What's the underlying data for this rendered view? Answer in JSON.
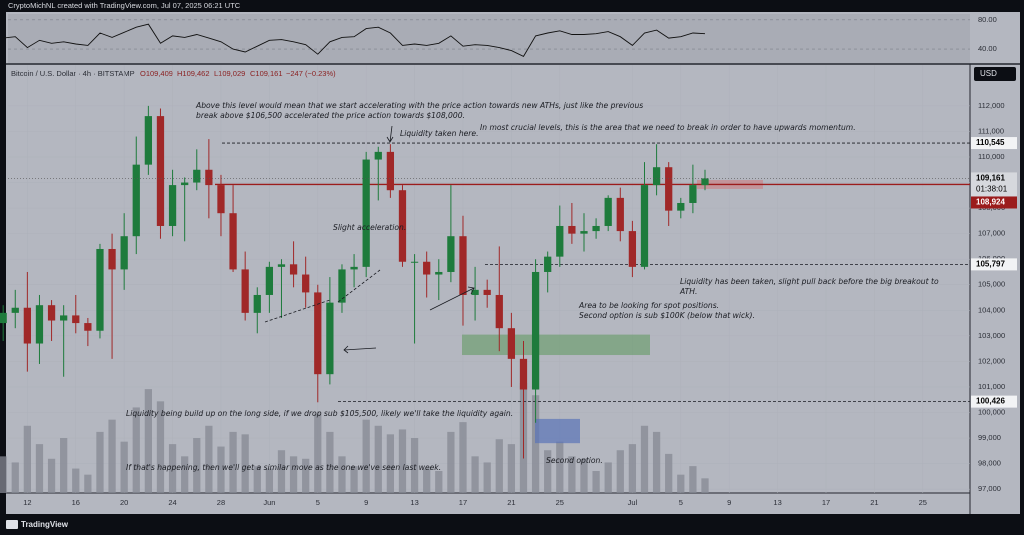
{
  "header": "CryptoMichNL created with TradingView.com, Jul 07, 2025 06:21 UTC",
  "legend": {
    "symbol": "Bitcoin / U.S. Dollar · 4h · BITSTAMP",
    "open": "O109,409",
    "high": "H109,462",
    "low": "L109,029",
    "close": "C109,161",
    "change": "−247 (−0.23%)"
  },
  "footer": "TradingView",
  "chart_data": {
    "type": "candlestick",
    "currency": "USD",
    "up_color": "#1e7b3c",
    "down_color": "#a02828",
    "xlim": [
      0.4,
      79.9
    ],
    "xticks": [
      {
        "value": 2,
        "label": "12"
      },
      {
        "value": 6,
        "label": "16"
      },
      {
        "value": 10,
        "label": "20"
      },
      {
        "value": 14,
        "label": "24"
      },
      {
        "value": 18,
        "label": "28"
      },
      {
        "value": 22,
        "label": "Jun"
      },
      {
        "value": 26,
        "label": "5"
      },
      {
        "value": 30,
        "label": "9"
      },
      {
        "value": 34,
        "label": "13"
      },
      {
        "value": 38,
        "label": "17"
      },
      {
        "value": 42,
        "label": "21"
      },
      {
        "value": 46,
        "label": "25"
      },
      {
        "value": 52,
        "label": "Jul"
      },
      {
        "value": 56,
        "label": "5"
      },
      {
        "value": 60,
        "label": "9"
      },
      {
        "value": 64,
        "label": "13"
      },
      {
        "value": 68,
        "label": "17"
      },
      {
        "value": 72,
        "label": "21"
      },
      {
        "value": 76,
        "label": "25"
      }
    ],
    "ylim": [
      96850,
      113600
    ],
    "yticks": [
      {
        "value": 97000,
        "label": "97,000"
      },
      {
        "value": 98000,
        "label": "98,000"
      },
      {
        "value": 99000,
        "label": "99,000"
      },
      {
        "value": 100000,
        "label": "100,000"
      },
      {
        "value": 101000,
        "label": "101,000"
      },
      {
        "value": 102000,
        "label": "102,000"
      },
      {
        "value": 103000,
        "label": "103,000"
      },
      {
        "value": 104000,
        "label": "104,000"
      },
      {
        "value": 105000,
        "label": "105,000"
      },
      {
        "value": 106000,
        "label": "106,000"
      },
      {
        "value": 107000,
        "label": "107,000"
      },
      {
        "value": 108000,
        "label": "108,000"
      },
      {
        "value": 109000,
        "label": "109,000"
      },
      {
        "value": 110000,
        "label": "110,000"
      },
      {
        "value": 111000,
        "label": "111,000"
      },
      {
        "value": 112000,
        "label": "112,000"
      }
    ],
    "ohlc": [
      [
        103500,
        104200,
        102800,
        103900
      ],
      [
        103900,
        104800,
        103300,
        104100
      ],
      [
        104100,
        105500,
        101600,
        102700
      ],
      [
        102700,
        104600,
        101900,
        104200
      ],
      [
        104200,
        104400,
        102800,
        103600
      ],
      [
        103600,
        104200,
        101400,
        103800
      ],
      [
        103800,
        104600,
        103100,
        103500
      ],
      [
        103500,
        103700,
        102600,
        103200
      ],
      [
        103200,
        106600,
        102900,
        106400
      ],
      [
        106400,
        107000,
        102100,
        105600
      ],
      [
        105600,
        107800,
        104800,
        106900
      ],
      [
        106900,
        110800,
        106200,
        109700
      ],
      [
        109700,
        112000,
        109300,
        111600
      ],
      [
        111600,
        111900,
        106800,
        107300
      ],
      [
        107300,
        109500,
        106900,
        108900
      ],
      [
        108900,
        109200,
        106700,
        109000
      ],
      [
        109000,
        110300,
        108700,
        109500
      ],
      [
        109500,
        110700,
        107600,
        108900
      ],
      [
        108900,
        109300,
        106900,
        107800
      ],
      [
        107800,
        108900,
        105500,
        105600
      ],
      [
        105600,
        106300,
        103600,
        103900
      ],
      [
        103900,
        104900,
        103100,
        104600
      ],
      [
        104600,
        105900,
        103900,
        105700
      ],
      [
        105700,
        106000,
        103700,
        105800
      ],
      [
        105800,
        106700,
        104900,
        105400
      ],
      [
        105400,
        106100,
        104100,
        104700
      ],
      [
        104700,
        105000,
        100400,
        101500
      ],
      [
        101500,
        105300,
        101100,
        104300
      ],
      [
        104300,
        105800,
        103900,
        105600
      ],
      [
        105600,
        106200,
        104900,
        105700
      ],
      [
        105700,
        110200,
        105300,
        109900
      ],
      [
        109900,
        110400,
        108300,
        110200
      ],
      [
        110200,
        110500,
        108400,
        108700
      ],
      [
        108700,
        108900,
        105700,
        105900
      ],
      [
        105900,
        106200,
        102700,
        105900
      ],
      [
        105900,
        106300,
        104500,
        105400
      ],
      [
        105400,
        106000,
        104400,
        105500
      ],
      [
        105500,
        108900,
        105100,
        106900
      ],
      [
        106900,
        107700,
        103400,
        104600
      ],
      [
        104600,
        105700,
        103600,
        104800
      ],
      [
        104800,
        105200,
        104100,
        104600
      ],
      [
        104600,
        106500,
        102400,
        103300
      ],
      [
        103300,
        103900,
        101000,
        102100
      ],
      [
        102100,
        102800,
        98200,
        100900
      ],
      [
        100900,
        106000,
        99600,
        105500
      ],
      [
        105500,
        106300,
        104700,
        106100
      ],
      [
        106100,
        108100,
        105700,
        107300
      ],
      [
        107300,
        108200,
        106600,
        107000
      ],
      [
        107000,
        107800,
        106300,
        107100
      ],
      [
        107100,
        107600,
        106800,
        107300
      ],
      [
        107300,
        108500,
        107100,
        108400
      ],
      [
        108400,
        108800,
        106700,
        107100
      ],
      [
        107100,
        107500,
        105300,
        105700
      ],
      [
        105700,
        109800,
        105600,
        108900
      ],
      [
        108900,
        110500,
        108500,
        109600
      ],
      [
        109600,
        109800,
        107300,
        107900
      ],
      [
        107900,
        108400,
        107600,
        108200
      ],
      [
        108200,
        109700,
        107800,
        108900
      ],
      [
        108900,
        109500,
        108700,
        109161
      ]
    ],
    "volume": [
      30,
      25,
      55,
      40,
      28,
      45,
      20,
      15,
      50,
      60,
      42,
      70,
      85,
      75,
      40,
      30,
      45,
      55,
      38,
      50,
      48,
      22,
      20,
      35,
      30,
      28,
      65,
      50,
      30,
      22,
      60,
      55,
      48,
      52,
      45,
      20,
      18,
      50,
      58,
      30,
      25,
      44,
      40,
      90,
      80,
      35,
      42,
      30,
      28,
      18,
      25,
      35,
      40,
      55,
      50,
      32,
      15,
      22,
      12
    ],
    "volume_color": "#858893",
    "rsi": [
      55,
      57,
      42,
      52,
      48,
      50,
      47,
      45,
      62,
      56,
      63,
      70,
      74,
      48,
      58,
      56,
      60,
      55,
      50,
      40,
      36,
      44,
      52,
      53,
      50,
      46,
      33,
      50,
      56,
      57,
      68,
      70,
      62,
      45,
      47,
      45,
      48,
      58,
      44,
      46,
      45,
      42,
      38,
      30,
      58,
      62,
      65,
      60,
      60,
      61,
      64,
      57,
      45,
      62,
      66,
      55,
      57,
      62,
      61
    ],
    "rsi_color": "#111111",
    "rsi_ylim": [
      21,
      88
    ],
    "rsi_yticks": [
      {
        "value": 40,
        "label": "40.00"
      },
      {
        "value": 80,
        "label": "80.00"
      }
    ],
    "levels": [
      {
        "value": 110545,
        "label": "110,545"
      },
      {
        "value": 105797,
        "label": "105,797"
      },
      {
        "value": 100426,
        "label": "100,426"
      }
    ],
    "resistance": {
      "value": 108924,
      "label": "108,924",
      "color": "#9b1c1c"
    },
    "last_price": {
      "value": 109161,
      "label": "109,161"
    },
    "countdown": "01:38:01",
    "zones": [
      {
        "low": 102250,
        "high": 103050,
        "color": "#6f9e72"
      },
      {
        "low": 98800,
        "high": 99750,
        "color": "#5a74b8"
      },
      {
        "low": 108750,
        "high": 109100,
        "color": "#c9848a"
      }
    ],
    "annotations": [
      [
        "Above this level would mean that we start accelerating with the price action towards new ATHs, just like the previous",
        "break above $106,500 accelerated the price action towards $108,000."
      ],
      [
        "In most crucial levels, this is the area that we need to break in order to have upwards momentum."
      ],
      [
        "Liquidity taken here."
      ],
      [
        "Slight acceleration."
      ],
      [
        "Liquidity has been taken, slight pull back before the big breakout to",
        "ATH."
      ],
      [
        "Area to be looking for spot positions.",
        "Second option is sub $100K (below that wick)."
      ],
      [
        "Liquidity being build up on the long side, if we drop sub $105,500, likely we'll take the liquidity again."
      ],
      [
        "Second option."
      ],
      [
        "If that's happening, then we'll get a similar move as the one we've seen last week."
      ]
    ]
  }
}
